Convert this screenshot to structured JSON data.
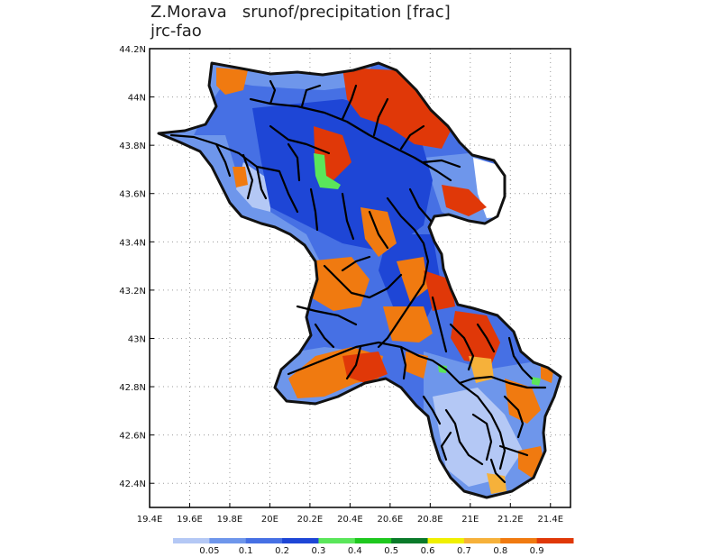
{
  "title": {
    "line1": "Z.Morava   srunof/precipitation [frac]",
    "line2": "jrc-fao"
  },
  "axes": {
    "lon_range": [
      19.4,
      21.5
    ],
    "lat_range": [
      42.3,
      44.2
    ],
    "x_ticks": [
      "19.4E",
      "19.6E",
      "19.8E",
      "20E",
      "20.2E",
      "20.4E",
      "20.6E",
      "20.8E",
      "21E",
      "21.2E",
      "21.4E"
    ],
    "y_ticks": [
      "44.2N",
      "44N",
      "43.8N",
      "43.6N",
      "43.4N",
      "43.2N",
      "43N",
      "42.8N",
      "42.6N",
      "42.4N"
    ]
  },
  "colorbar": {
    "labels": [
      "0.05",
      "0.1",
      "0.2",
      "0.3",
      "0.4",
      "0.5",
      "0.6",
      "0.7",
      "0.8",
      "0.9"
    ],
    "colors": [
      "#b4c8f5",
      "#6e96eb",
      "#4670e4",
      "#1e46d6",
      "#5ae65a",
      "#1ec81e",
      "#0a7a2a",
      "#f0f000",
      "#f6b13a",
      "#f07a10",
      "#e03808"
    ]
  },
  "map_colors": {
    "frame": "#000000",
    "grid": "#9a9a9a",
    "border": "#111111",
    "river": "#000000"
  }
}
